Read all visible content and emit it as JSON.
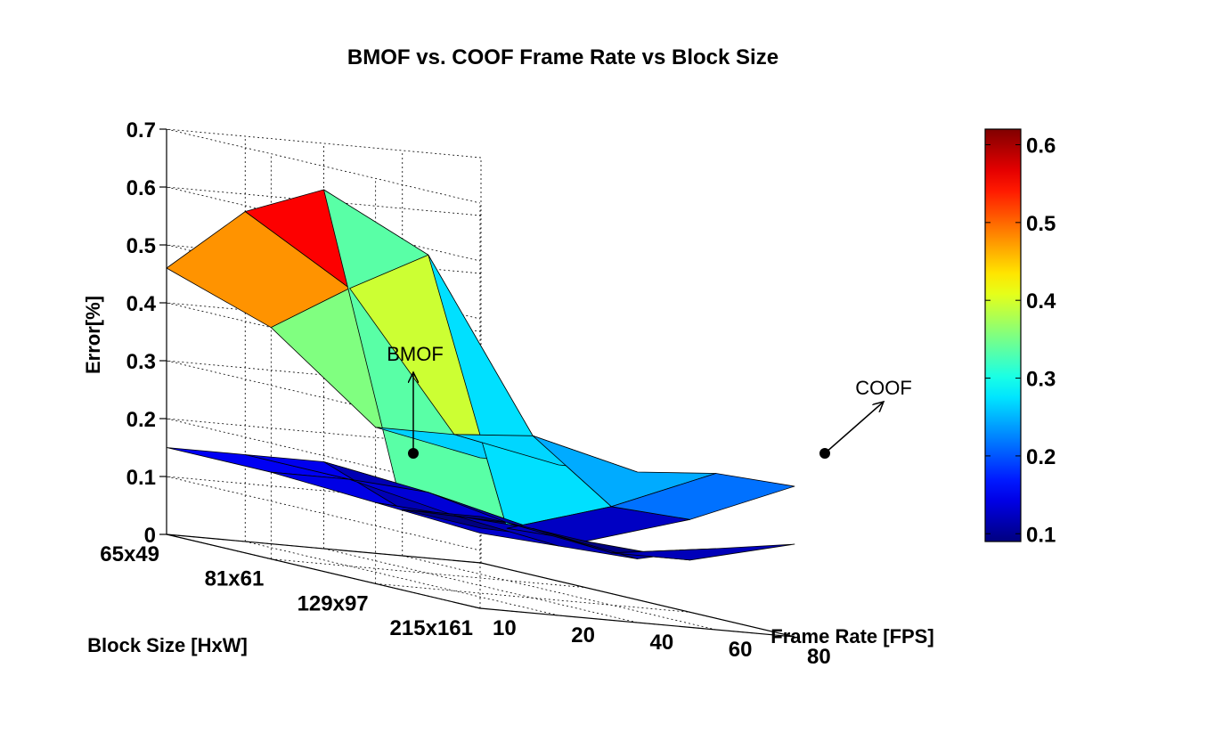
{
  "chart_data": {
    "type": "surface3d",
    "title": "BMOF vs. COOF Frame Rate vs Block Size",
    "zlabel": "Error[%]",
    "xlabel": "Frame Rate [FPS]",
    "ylabel": "Block Size [HxW]",
    "x_ticks": [
      "80",
      "60",
      "40",
      "20",
      "10"
    ],
    "y_ticks": [
      "65x49",
      "81x61",
      "129x97",
      "215x161"
    ],
    "zlim": [
      0,
      0.7
    ],
    "z_ticks": [
      "0",
      "0.1",
      "0.2",
      "0.3",
      "0.4",
      "0.5",
      "0.6",
      "0.7"
    ],
    "grid": true,
    "colormap": "jet",
    "colorbar": {
      "range": [
        0.09,
        0.62
      ],
      "ticks": [
        "0.1",
        "0.2",
        "0.3",
        "0.4",
        "0.5",
        "0.6"
      ]
    },
    "frame_rates": [
      10,
      20,
      40,
      60,
      80
    ],
    "block_sizes": [
      "65x49",
      "81x61",
      "129x97",
      "215x161"
    ],
    "series": [
      {
        "name": "BMOF",
        "values": [
          [
            0.46,
            0.57,
            0.62,
            0.08,
            0.08
          ],
          [
            0.4,
            0.48,
            0.55,
            0.09,
            0.08
          ],
          [
            0.27,
            0.27,
            0.28,
            0.17,
            0.16
          ],
          [
            0.26,
            0.26,
            0.26,
            0.27,
            0.26
          ]
        ]
      },
      {
        "name": "COOF",
        "values": [
          [
            0.15,
            0.15,
            0.15,
            0.08,
            0.06
          ],
          [
            0.15,
            0.15,
            0.14,
            0.1,
            0.08
          ],
          [
            0.14,
            0.13,
            0.12,
            0.09,
            0.09
          ],
          [
            0.13,
            0.12,
            0.11,
            0.14,
            0.16
          ]
        ]
      }
    ],
    "annotations": [
      {
        "text": "BMOF"
      },
      {
        "text": "COOF"
      }
    ]
  }
}
